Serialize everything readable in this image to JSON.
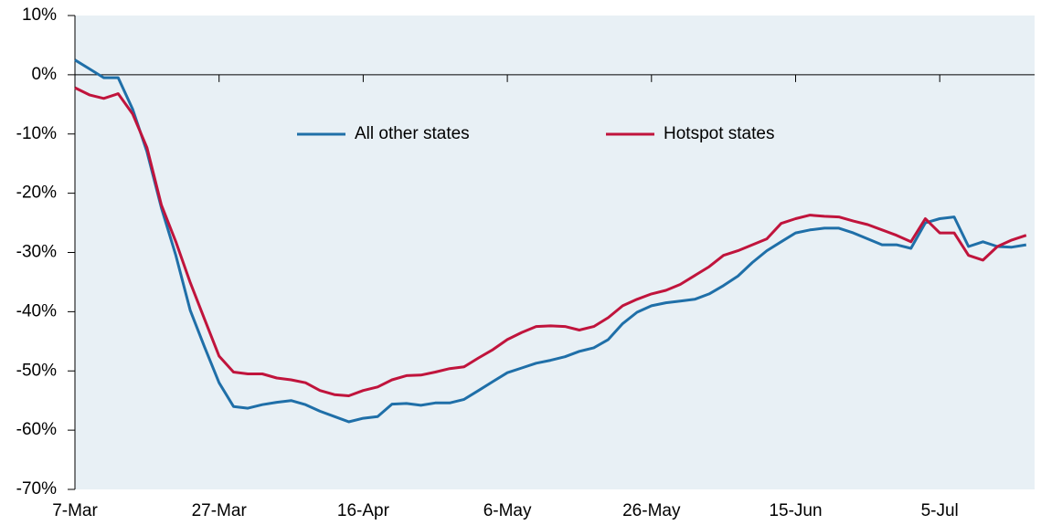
{
  "chart_data": {
    "type": "line",
    "categories": [
      "7-Mar",
      null,
      null,
      null,
      null,
      null,
      null,
      null,
      null,
      null,
      "27-Mar",
      null,
      null,
      null,
      null,
      null,
      null,
      null,
      null,
      null,
      "16-Apr",
      null,
      null,
      null,
      null,
      null,
      null,
      null,
      null,
      null,
      "6-May",
      null,
      null,
      null,
      null,
      null,
      null,
      null,
      null,
      null,
      "26-May",
      null,
      null,
      null,
      null,
      null,
      null,
      null,
      null,
      null,
      "15-Jun",
      null,
      null,
      null,
      null,
      null,
      null,
      null,
      null,
      null,
      "5-Jul",
      null,
      null,
      null,
      null,
      null,
      null
    ],
    "series": [
      {
        "name": "All other states",
        "color": "#1f6fa8",
        "values": [
          2.5,
          1,
          -0.5,
          -0.5,
          -5.8,
          -13,
          -22.5,
          -30.5,
          -39.8,
          -46,
          -52,
          -56,
          -56.3,
          -55.7,
          -55.3,
          -55,
          -55.7,
          -56.8,
          -57.7,
          -58.6,
          -58,
          -57.7,
          -55.6,
          -55.5,
          -55.8,
          -55.4,
          -55.4,
          -54.8,
          -53.3,
          -51.8,
          -50.3,
          -49.5,
          -48.7,
          -48.2,
          -47.6,
          -46.7,
          -46.1,
          -44.7,
          -42,
          -40.1,
          -39,
          -38.5,
          -38.2,
          -37.9,
          -37,
          -35.6,
          -34,
          -31.7,
          -29.7,
          -28.2,
          -26.7,
          -26.2,
          -25.9,
          -25.9,
          -26.7,
          -27.7,
          -28.7,
          -28.7,
          -29.3,
          -25,
          -24.3,
          -24,
          -29,
          -28.2,
          -29,
          -29.1,
          -28.7
        ]
      },
      {
        "name": "Hotspot states",
        "color": "#c0143c",
        "values": [
          -2.2,
          -3.4,
          -4,
          -3.2,
          -6.6,
          -12.3,
          -22,
          -28.2,
          -35.1,
          -41.3,
          -47.5,
          -50.2,
          -50.5,
          -50.5,
          -51.2,
          -51.5,
          -52,
          -53.3,
          -54,
          -54.2,
          -53.3,
          -52.7,
          -51.5,
          -50.8,
          -50.7,
          -50.2,
          -49.6,
          -49.3,
          -47.8,
          -46.4,
          -44.7,
          -43.5,
          -42.5,
          -42.4,
          -42.5,
          -43.1,
          -42.5,
          -41,
          -39,
          -37.9,
          -37,
          -36.4,
          -35.4,
          -33.9,
          -32.4,
          -30.5,
          -29.7,
          -28.7,
          -27.7,
          -25.1,
          -24.3,
          -23.7,
          -23.9,
          -24,
          -24.7,
          -25.3,
          -26.2,
          -27.1,
          -28.2,
          -24.3,
          -26.7,
          -26.7,
          -30.5,
          -31.3,
          -29,
          -27.9,
          -27.1
        ]
      }
    ],
    "ylim": [
      -70,
      10
    ],
    "yticks": [
      {
        "value": -70,
        "label": "-70%"
      },
      {
        "value": -60,
        "label": "-60%"
      },
      {
        "value": -50,
        "label": "-50%"
      },
      {
        "value": -40,
        "label": "-40%"
      },
      {
        "value": -30,
        "label": "-30%"
      },
      {
        "value": -20,
        "label": "-20%"
      },
      {
        "value": -10,
        "label": "-10%"
      },
      {
        "value": 0,
        "label": "0%"
      },
      {
        "value": 10,
        "label": "10%"
      }
    ]
  }
}
